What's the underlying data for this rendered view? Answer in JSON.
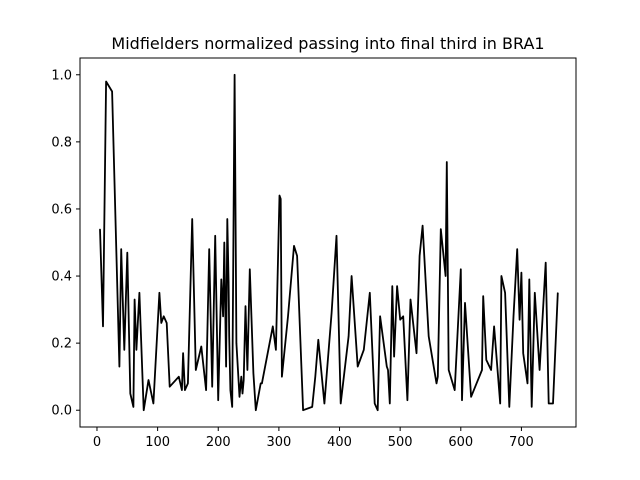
{
  "chart_data": {
    "type": "line",
    "title": "Midfielders normalized passing into final third in BRA1",
    "xlabel": "",
    "ylabel": "",
    "xlim": [
      -28,
      790
    ],
    "ylim": [
      -0.05,
      1.05
    ],
    "x_ticks": [
      0,
      100,
      200,
      300,
      400,
      500,
      600,
      700
    ],
    "y_ticks": [
      0.0,
      0.2,
      0.4,
      0.6,
      0.8,
      1.0
    ],
    "x_tick_labels": [
      "0",
      "100",
      "200",
      "300",
      "400",
      "500",
      "600",
      "700"
    ],
    "y_tick_labels": [
      "0.0",
      "0.2",
      "0.4",
      "0.6",
      "0.8",
      "1.0"
    ],
    "grid": false,
    "series": [
      {
        "color": "#000000",
        "x": [
          5,
          10,
          15,
          25,
          37,
          40,
          45,
          50,
          55,
          60,
          62,
          65,
          70,
          77,
          85,
          93,
          103,
          106,
          110,
          115,
          120,
          135,
          140,
          142,
          145,
          150,
          157,
          163,
          172,
          180,
          185,
          190,
          195,
          200,
          205,
          208,
          210,
          213,
          215,
          217,
          218,
          220,
          223,
          227,
          230,
          235,
          238,
          240,
          242,
          245,
          248,
          252,
          258,
          262,
          270,
          272,
          290,
          295,
          301,
          303,
          305,
          315,
          325,
          330,
          340,
          355,
          360,
          365,
          375,
          387,
          395,
          402,
          415,
          420,
          430,
          440,
          450,
          458,
          463,
          467,
          478,
          480,
          483,
          487,
          490,
          495,
          500,
          505,
          512,
          517,
          527,
          532,
          537,
          547,
          560,
          562,
          567,
          575,
          577,
          580,
          590,
          600,
          602,
          607,
          617,
          635,
          637,
          642,
          650,
          655,
          665,
          667,
          673,
          680,
          687,
          693,
          697,
          700,
          703,
          710,
          713,
          717,
          722,
          730,
          740,
          745,
          752,
          760
        ],
        "y": [
          0.54,
          0.25,
          0.98,
          0.95,
          0.13,
          0.48,
          0.18,
          0.47,
          0.05,
          0.01,
          0.33,
          0.18,
          0.35,
          0.0,
          0.09,
          0.02,
          0.35,
          0.26,
          0.28,
          0.26,
          0.07,
          0.1,
          0.06,
          0.17,
          0.06,
          0.08,
          0.57,
          0.12,
          0.19,
          0.06,
          0.48,
          0.07,
          0.52,
          0.03,
          0.39,
          0.28,
          0.5,
          0.13,
          0.57,
          0.38,
          0.22,
          0.06,
          0.01,
          1.0,
          0.2,
          0.04,
          0.1,
          0.05,
          0.09,
          0.31,
          0.12,
          0.42,
          0.11,
          0.0,
          0.08,
          0.08,
          0.25,
          0.18,
          0.64,
          0.63,
          0.1,
          0.28,
          0.49,
          0.46,
          0.0,
          0.01,
          0.1,
          0.21,
          0.02,
          0.29,
          0.52,
          0.02,
          0.22,
          0.4,
          0.13,
          0.18,
          0.35,
          0.02,
          0.0,
          0.28,
          0.13,
          0.12,
          0.02,
          0.37,
          0.16,
          0.37,
          0.27,
          0.28,
          0.03,
          0.33,
          0.17,
          0.46,
          0.55,
          0.22,
          0.08,
          0.1,
          0.54,
          0.4,
          0.74,
          0.12,
          0.06,
          0.42,
          0.03,
          0.32,
          0.04,
          0.12,
          0.34,
          0.15,
          0.12,
          0.25,
          0.02,
          0.4,
          0.35,
          0.01,
          0.28,
          0.48,
          0.27,
          0.41,
          0.17,
          0.08,
          0.39,
          0.01,
          0.35,
          0.12,
          0.44,
          0.02,
          0.02,
          0.35
        ]
      }
    ]
  }
}
